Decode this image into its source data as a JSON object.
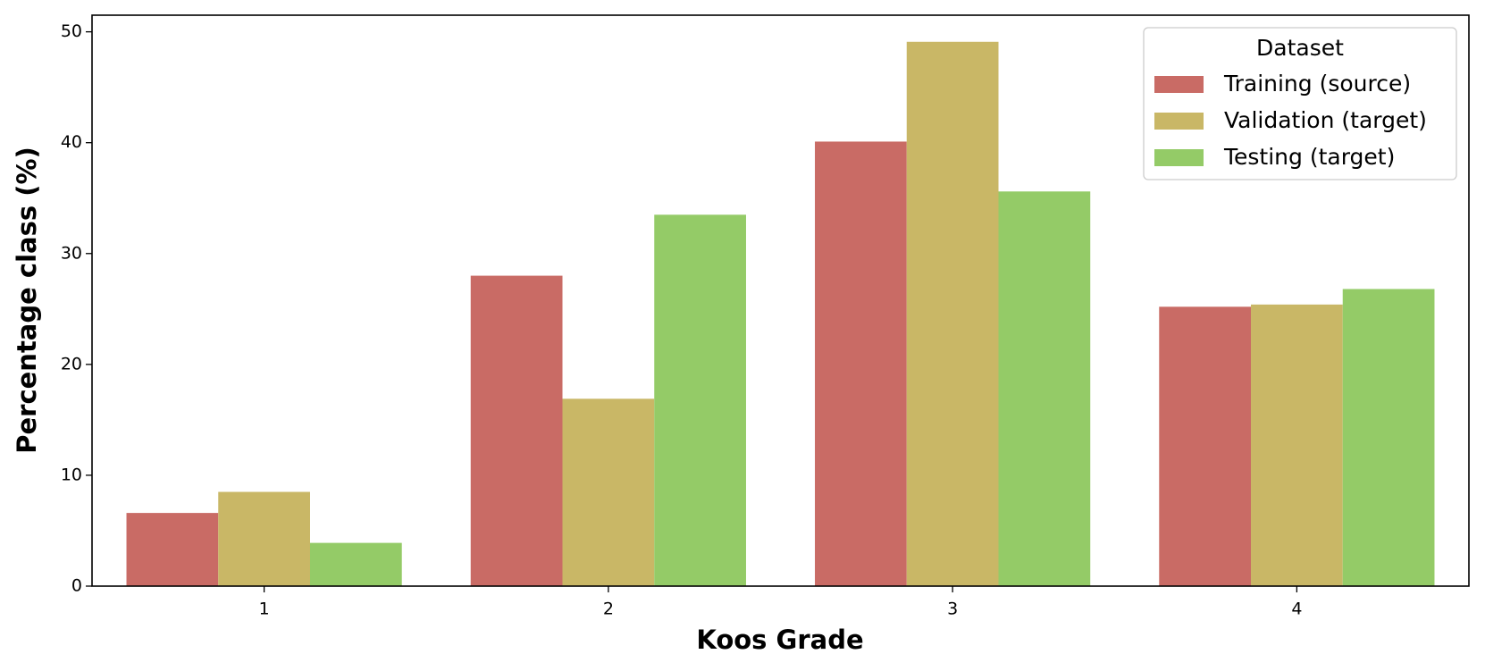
{
  "chart_data": {
    "type": "bar",
    "categories": [
      "1",
      "2",
      "3",
      "4"
    ],
    "x_label": "Koos Grade",
    "y_label": "Percentage class (%)",
    "legend_title": "Dataset",
    "legend_position": "upper right",
    "series": [
      {
        "name": "Training (source)",
        "color": "#c96b65",
        "values": [
          6.6,
          28.0,
          40.1,
          25.2
        ]
      },
      {
        "name": "Validation (target)",
        "color": "#c9b766",
        "values": [
          8.5,
          16.9,
          49.1,
          25.4
        ]
      },
      {
        "name": "Testing (target)",
        "color": "#94cb67",
        "values": [
          3.9,
          33.5,
          35.6,
          26.8
        ]
      }
    ],
    "ylim": [
      0,
      51.5
    ],
    "yticks": [
      0,
      10,
      20,
      30,
      40,
      50
    ],
    "grid": false
  }
}
